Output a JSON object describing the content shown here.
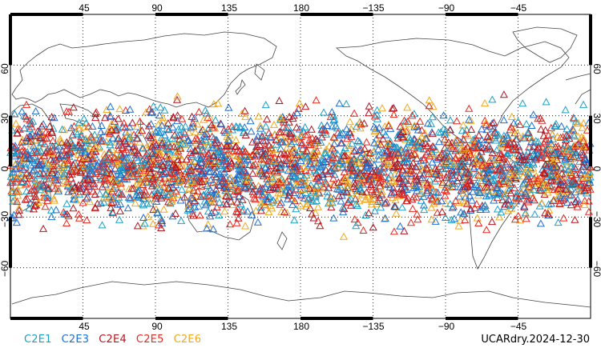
{
  "map": {
    "top_lon_labels": [
      "45",
      "90",
      "135",
      "180",
      "−135",
      "−90",
      "−45"
    ],
    "bottom_lon_labels": [
      "45",
      "90",
      "135",
      "180",
      "−135",
      "−90",
      "−45"
    ],
    "left_lat_labels": [
      "60",
      "30",
      "0",
      "−30",
      "−60"
    ],
    "right_lat_labels": [
      "60",
      "30",
      "0",
      "−30",
      "−60"
    ],
    "lon_start": 0,
    "lon_end": 360,
    "lat_top": 90,
    "lat_bottom": -90,
    "obs_lat_range": [
      -45,
      45
    ],
    "marker": "open-triangle"
  },
  "legend": [
    {
      "label": "C2E1",
      "color": "#1aa0c8"
    },
    {
      "label": "C2E3",
      "color": "#1e6fd0"
    },
    {
      "label": "C2E4",
      "color": "#b4141e"
    },
    {
      "label": "C2E5",
      "color": "#e8281e"
    },
    {
      "label": "C2E6",
      "color": "#f0a81e"
    }
  ],
  "stamp": "UCARdry.2024-12-30"
}
